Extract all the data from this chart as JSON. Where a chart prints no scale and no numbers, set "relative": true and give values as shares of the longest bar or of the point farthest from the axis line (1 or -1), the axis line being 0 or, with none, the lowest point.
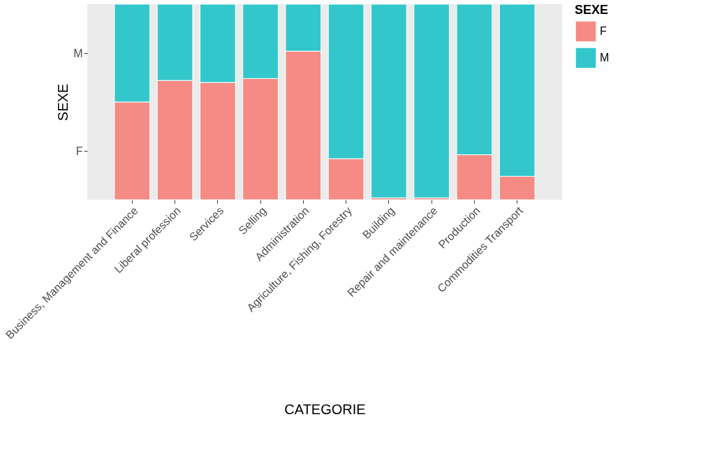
{
  "chart_data": {
    "type": "bar",
    "stacked": true,
    "xlabel": "CATEGORIE",
    "ylabel": "SEXE",
    "legend_title": "SEXE",
    "legend": "right",
    "categories": [
      "Business, Management and Finance",
      "Liberal profession",
      "Services",
      "Selling",
      "Administration",
      "Agriculture, Fishing, Forestry",
      "Building",
      "Repair and maintenance",
      "Production",
      "Commodities Transport"
    ],
    "relative": true,
    "annotations": [
      "F",
      "M"
    ],
    "series": [
      {
        "name": "F",
        "color": "#f58b84",
        "values": [
          0.5,
          0.61,
          0.6,
          0.62,
          0.76,
          0.21,
          0.01,
          0.01,
          0.23,
          0.12
        ]
      },
      {
        "name": "M",
        "color": "#33c7cb",
        "values": [
          0.5,
          0.39,
          0.4,
          0.38,
          0.24,
          0.79,
          0.99,
          0.99,
          0.77,
          0.88
        ]
      }
    ]
  }
}
